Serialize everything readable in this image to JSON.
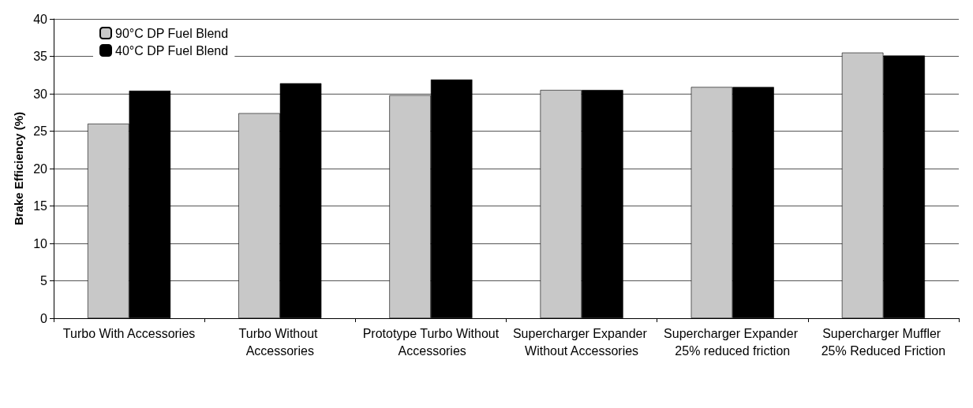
{
  "chart_data": {
    "type": "bar",
    "ylabel": "Brake Efficiency (%)",
    "categories": [
      "Turbo With Accessories",
      "Turbo Without Accessories",
      "Prototype Turbo Without Accessories",
      "Supercharger Expander Without Accessories",
      "Supercharger Expander 25% reduced friction",
      "Supercharger Muffler 25% Reduced Friction"
    ],
    "series": [
      {
        "name": "90°C DP Fuel Blend",
        "color": "#c8c8c8",
        "values": [
          26.0,
          27.4,
          29.8,
          30.5,
          30.9,
          35.5
        ]
      },
      {
        "name": "40°C DP Fuel Blend",
        "color": "#000000",
        "values": [
          30.4,
          31.4,
          31.9,
          30.5,
          30.9,
          35.1
        ]
      }
    ],
    "ylim": [
      0,
      40
    ],
    "yticks": [
      0,
      5,
      10,
      15,
      20,
      25,
      30,
      35,
      40
    ],
    "grid": "y",
    "legend": "top left"
  }
}
